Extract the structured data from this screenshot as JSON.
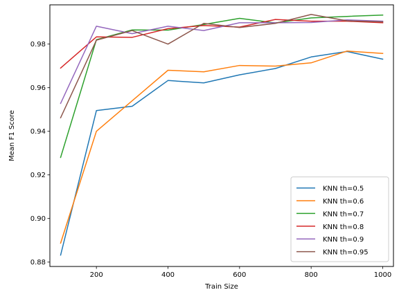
{
  "chart_data": {
    "type": "line",
    "title": "",
    "xlabel": "Train Size",
    "ylabel": "Mean F1 Score",
    "xlim": [
      70,
      1030
    ],
    "ylim": [
      0.878,
      0.998
    ],
    "xticks": [
      200,
      400,
      600,
      800,
      1000
    ],
    "yticks": [
      0.88,
      0.9,
      0.92,
      0.94,
      0.96,
      0.98
    ],
    "ytick_labels": [
      "0.88",
      "0.90",
      "0.92",
      "0.94",
      "0.96",
      "0.98"
    ],
    "grid": false,
    "legend_position": "lower-right",
    "x": [
      100,
      200,
      300,
      400,
      500,
      600,
      700,
      800,
      900,
      1000
    ],
    "series": [
      {
        "name": "KNN th=0.5",
        "color": "#1f77b4",
        "values": [
          0.8832,
          0.9495,
          0.9515,
          0.9633,
          0.9622,
          0.9659,
          0.9688,
          0.9741,
          0.9766,
          0.9731
        ]
      },
      {
        "name": "KNN th=0.6",
        "color": "#ff7f0e",
        "values": [
          0.8887,
          0.94,
          0.954,
          0.968,
          0.9673,
          0.9702,
          0.9699,
          0.9714,
          0.9768,
          0.9757
        ]
      },
      {
        "name": "KNN th=0.7",
        "color": "#2ca02c",
        "values": [
          0.928,
          0.982,
          0.9865,
          0.9864,
          0.989,
          0.9918,
          0.9897,
          0.992,
          0.9927,
          0.9933
        ]
      },
      {
        "name": "KNN th=0.8",
        "color": "#d62728",
        "values": [
          0.969,
          0.9833,
          0.9831,
          0.9871,
          0.9885,
          0.9878,
          0.9913,
          0.9905,
          0.9905,
          0.9898
        ]
      },
      {
        "name": "KNN th=0.9",
        "color": "#9467bd",
        "values": [
          0.9528,
          0.9882,
          0.9848,
          0.9882,
          0.9862,
          0.9898,
          0.9898,
          0.9899,
          0.9911,
          0.9905
        ]
      },
      {
        "name": "KNN th=0.95",
        "color": "#8c564b",
        "values": [
          0.9462,
          0.9818,
          0.9862,
          0.98,
          0.9895,
          0.9876,
          0.9895,
          0.9936,
          0.9907,
          0.9902
        ]
      }
    ]
  }
}
